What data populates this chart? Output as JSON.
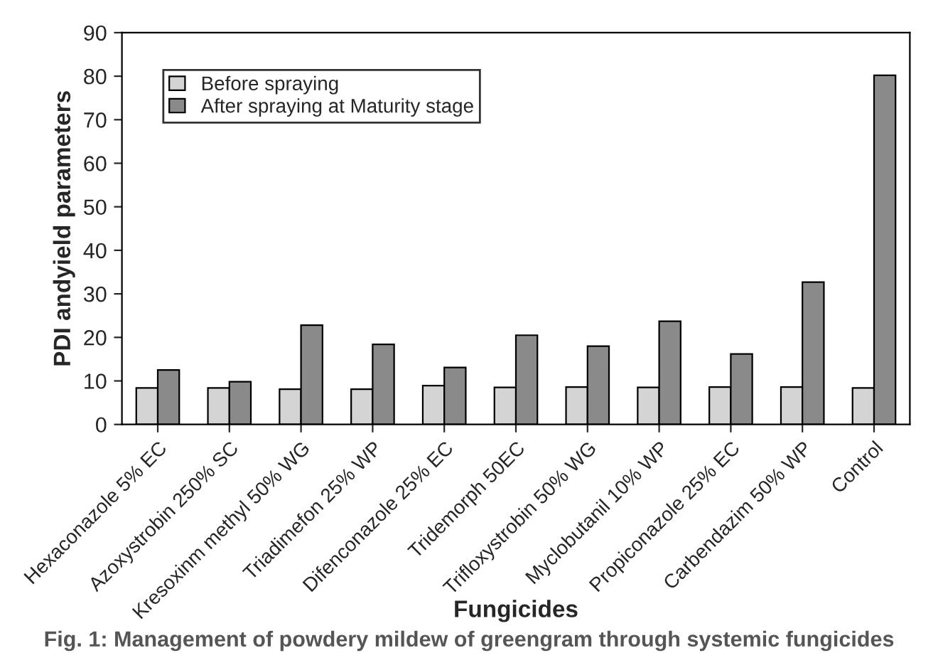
{
  "chart_data": {
    "type": "bar",
    "categories": [
      "Hexaconazole 5% EC",
      "Azoxystrobin 250% SC",
      "Kresoxinm methyl 50% WG",
      "Triadimefon 25% WP",
      "Difenconazole 25% EC",
      "Tridemorph 50EC",
      "Trifloxystrobin 50% WG",
      "Myclobutanil 10% WP",
      "Propiconazole 25% EC",
      "Carbendazim 50% WP",
      "Control"
    ],
    "series": [
      {
        "name": "Before spraying",
        "color": "#d4d4d4",
        "values": [
          8.4,
          8.4,
          8.1,
          8.1,
          8.9,
          8.5,
          8.6,
          8.5,
          8.6,
          8.6,
          8.4
        ]
      },
      {
        "name": "After spraying at Maturity stage",
        "color": "#8a8a8a",
        "values": [
          12.5,
          9.8,
          22.8,
          18.4,
          13.1,
          20.5,
          18.0,
          23.7,
          16.2,
          32.7,
          80.2
        ]
      }
    ],
    "xlabel": "Fungicides",
    "ylabel": "PDI andyield parameters",
    "annotations": [
      "Fig. 1: Management of powdery mildew of greengram through systemic fungicides"
    ],
    "ylim": [
      0,
      90
    ],
    "yticks": [
      0,
      10,
      20,
      30,
      40,
      50,
      60,
      70,
      80,
      90
    ],
    "grid": false,
    "legend": "top left"
  }
}
